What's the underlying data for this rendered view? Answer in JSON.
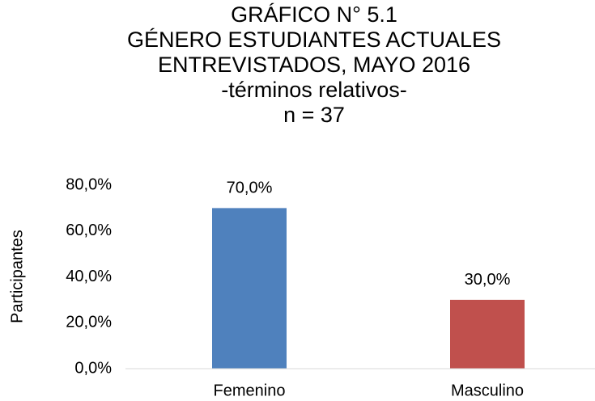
{
  "chart_data": {
    "type": "bar",
    "title": [
      "GRÁFICO N° 5.1",
      "GÉNERO ESTUDIANTES ACTUALES",
      "ENTREVISTADOS, MAYO 2016"
    ],
    "subtitle": [
      "-términos relativos-",
      "n = 37"
    ],
    "y_label": "Participantes",
    "categories": [
      "Femenino",
      "Masculino"
    ],
    "values": [
      70,
      30
    ],
    "value_labels": [
      "70,0%",
      "30,0%"
    ],
    "colors": [
      "#4f81bd",
      "#c0504d"
    ],
    "ylim": [
      0,
      80
    ],
    "yticks": [
      {
        "value": 0,
        "label": "0,0%"
      },
      {
        "value": 20,
        "label": "20,0%"
      },
      {
        "value": 40,
        "label": "40,0%"
      },
      {
        "value": 60,
        "label": "60,0%"
      },
      {
        "value": 80,
        "label": "80,0%"
      }
    ],
    "grid": false
  }
}
